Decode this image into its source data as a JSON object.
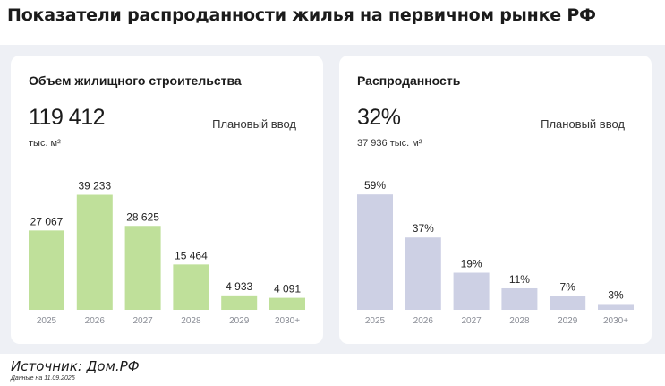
{
  "title": "Показатели распроданности жилья на первичном рынке РФ",
  "cards": [
    {
      "title": "Объем жилищного строительства",
      "big_value": "119 412",
      "sub_value": "тыс. м²",
      "plan_label": "Плановый ввод"
    },
    {
      "title": "Распроданность",
      "big_value": "32%",
      "sub_value": "37 936 тыс. м²",
      "plan_label": "Плановый ввод"
    }
  ],
  "chart_data": [
    {
      "type": "bar",
      "categories": [
        "2025",
        "2026",
        "2027",
        "2028",
        "2029",
        "2030+"
      ],
      "values": [
        27067,
        39233,
        28625,
        15464,
        4933,
        4091
      ],
      "labels": [
        "27 067",
        "39 233",
        "28 625",
        "15 464",
        "4 933",
        "4 091"
      ],
      "color": "#bfe09a",
      "ylim": [
        0,
        40000
      ]
    },
    {
      "type": "bar",
      "categories": [
        "2025",
        "2026",
        "2027",
        "2028",
        "2029",
        "2030+"
      ],
      "values": [
        59,
        37,
        19,
        11,
        7,
        3
      ],
      "labels": [
        "59%",
        "37%",
        "19%",
        "11%",
        "7%",
        "3%"
      ],
      "color": "#cdd0e4",
      "ylim": [
        0,
        60
      ]
    }
  ],
  "source": "Источник: Дом.РФ",
  "date_note": "Данные на 11.09.2025"
}
